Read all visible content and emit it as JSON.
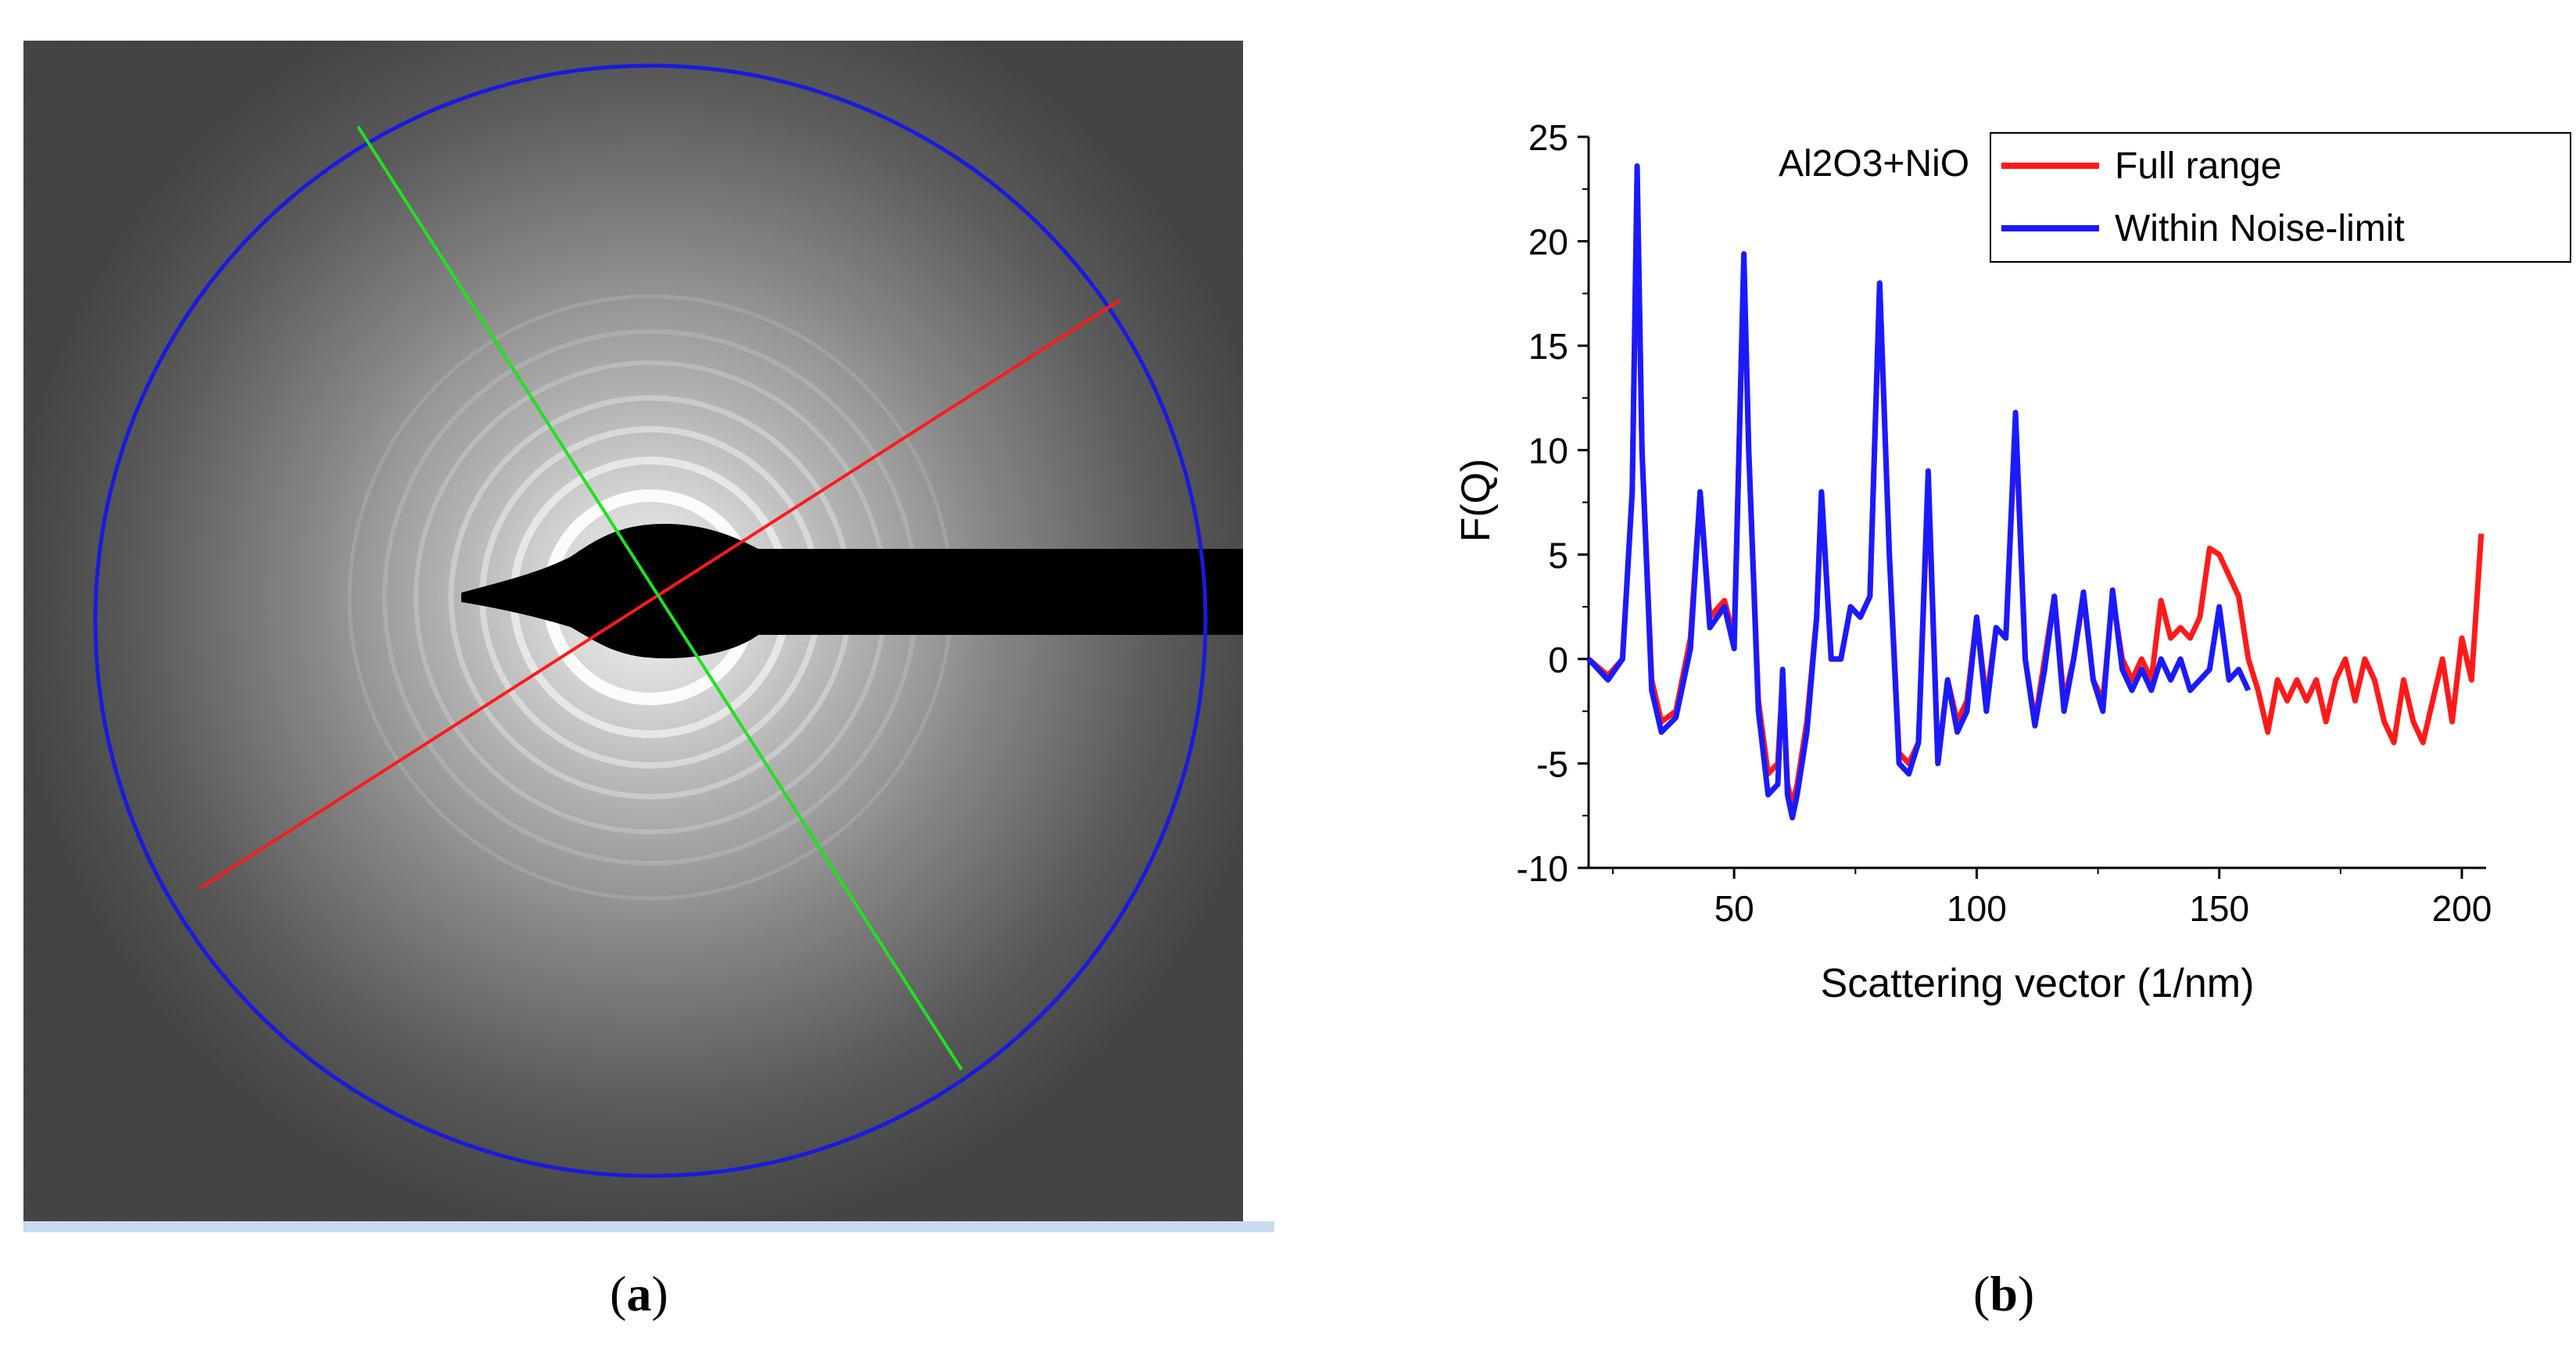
{
  "panel_a": {
    "caption_open": "(",
    "caption_letter": "a",
    "caption_close": ")",
    "colors": {
      "circle": "#1a1adf",
      "line1": "#ff1a1a",
      "line2": "#22e022",
      "beamstop": "#000000"
    }
  },
  "panel_b": {
    "caption_open": "(",
    "caption_letter": "b",
    "caption_close": ")"
  },
  "chart_data": {
    "type": "line",
    "title": "",
    "annotation": "Al2O3+NiO",
    "xlabel": "Scattering vector (1/nm)",
    "ylabel": "F(Q)",
    "xlim": [
      20,
      205
    ],
    "ylim": [
      -10,
      25
    ],
    "xticks": [
      50,
      100,
      150,
      200
    ],
    "yticks": [
      -10,
      -5,
      0,
      5,
      10,
      15,
      20,
      25
    ],
    "legend_position": "top-right",
    "series": [
      {
        "name": "Full range",
        "color": "#ff1a1a",
        "x": [
          20,
          24,
          27,
          29,
          30,
          31,
          33,
          35,
          38,
          41,
          43,
          45,
          48,
          50,
          52,
          53,
          55,
          57,
          59,
          60,
          61,
          62,
          63,
          65,
          67,
          68,
          70,
          72,
          74,
          76,
          78,
          80,
          82,
          84,
          86,
          88,
          90,
          92,
          94,
          96,
          98,
          100,
          102,
          104,
          106,
          108,
          110,
          112,
          114,
          116,
          118,
          120,
          122,
          124,
          126,
          128,
          130,
          132,
          134,
          136,
          138,
          140,
          142,
          144,
          146,
          148,
          150,
          152,
          154,
          156,
          158,
          160,
          162,
          164,
          166,
          168,
          170,
          172,
          174,
          176,
          178,
          180,
          182,
          184,
          186,
          188,
          190,
          192,
          194,
          196,
          198,
          200,
          202,
          204
        ],
        "y": [
          0,
          -0.8,
          0,
          8,
          23,
          10,
          -1,
          -3,
          -2.5,
          1,
          8,
          2,
          2.8,
          1,
          19,
          10,
          -2,
          -5.5,
          -5,
          -1,
          -6,
          -7,
          -6,
          -3,
          2,
          8,
          0,
          0,
          2.5,
          2,
          3,
          18,
          5,
          -4.5,
          -5,
          -4,
          8.5,
          -5,
          -1,
          -3,
          -2,
          2,
          -2,
          1.5,
          1,
          11.5,
          0,
          -3,
          0,
          3,
          -2,
          0,
          3,
          -1,
          -2,
          3,
          0,
          -1,
          0,
          -1,
          2.8,
          1,
          1.5,
          1,
          2,
          5.3,
          5,
          4,
          3,
          0,
          -1.5,
          -3.5,
          -1,
          -2,
          -1,
          -2,
          -1,
          -3,
          -1,
          0,
          -2,
          0,
          -1,
          -3,
          -4,
          -1,
          -3,
          -4,
          -2,
          0,
          -3,
          1,
          -1,
          6
        ]
      },
      {
        "name": "Within Noise-limit",
        "color": "#1a1aff",
        "x": [
          20,
          24,
          27,
          29,
          30,
          31,
          33,
          35,
          38,
          41,
          43,
          45,
          48,
          50,
          52,
          53,
          55,
          57,
          59,
          60,
          61,
          62,
          63,
          65,
          67,
          68,
          70,
          72,
          74,
          76,
          78,
          80,
          82,
          84,
          86,
          88,
          90,
          92,
          94,
          96,
          98,
          100,
          102,
          104,
          106,
          108,
          110,
          112,
          114,
          116,
          118,
          120,
          122,
          124,
          126,
          128,
          130,
          132,
          134,
          136,
          138,
          140,
          142,
          144,
          146,
          148,
          150,
          152,
          154,
          156
        ],
        "y": [
          0,
          -1,
          0,
          8,
          23.6,
          10,
          -1.5,
          -3.5,
          -2.8,
          0.5,
          8,
          1.5,
          2.5,
          0.5,
          19.4,
          10,
          -2.5,
          -6.5,
          -6,
          -0.5,
          -6.5,
          -7.6,
          -6.5,
          -3.5,
          2,
          8,
          0,
          0,
          2.5,
          2,
          3,
          18,
          5,
          -5,
          -5.5,
          -4,
          9,
          -5,
          -1,
          -3.5,
          -2.5,
          2,
          -2.5,
          1.5,
          1,
          11.8,
          0,
          -3.2,
          -0.5,
          3,
          -2.5,
          0,
          3.2,
          -1,
          -2.5,
          3.3,
          -0.5,
          -1.5,
          -0.5,
          -1.5,
          0,
          -1,
          0,
          -1.5,
          -1,
          -0.5,
          2.5,
          -1,
          -0.5,
          -1.5
        ]
      }
    ]
  }
}
